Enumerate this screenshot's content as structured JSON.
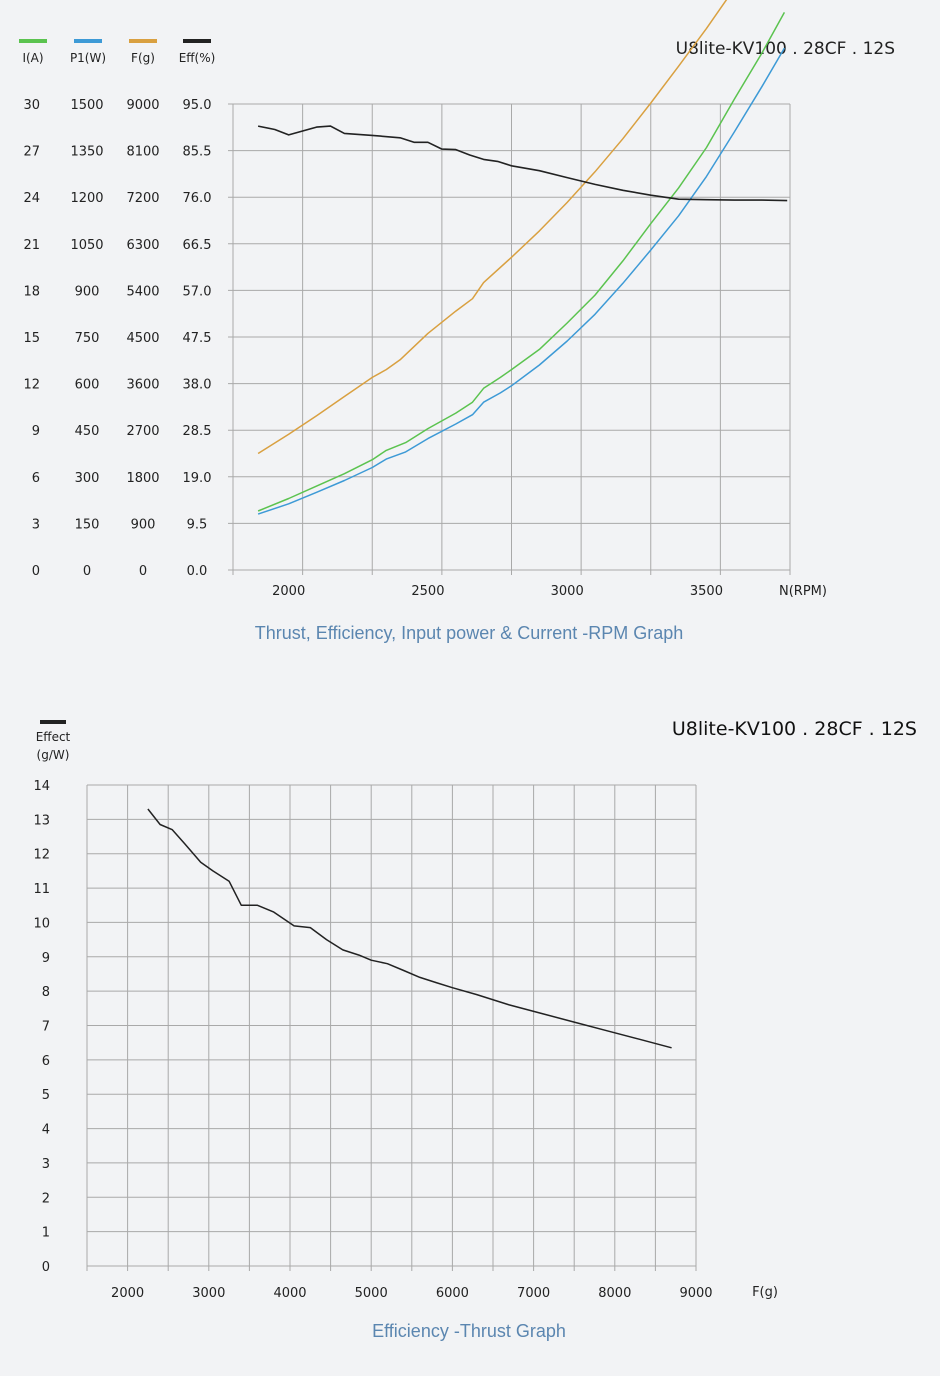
{
  "colors": {
    "current": "#5bc34f",
    "power": "#3d9ad6",
    "thrust": "#d9a040",
    "efficiency": "#222222",
    "grid": "#a9a9a9",
    "caption": "#5b86b0"
  },
  "chart_data": [
    {
      "type": "line",
      "title": "Thrust, Efficiency, Input power & Current -RPM Graph",
      "model": "U8lite-KV100 . 28CF . 12S",
      "xlabel": "N(RPM)",
      "xlim": [
        1800,
        3800
      ],
      "x_ticks": [
        "2000",
        "2500",
        "3000",
        "3500"
      ],
      "legend": [
        {
          "key": "current",
          "label": "I(A)"
        },
        {
          "key": "power",
          "label": "P1(W)"
        },
        {
          "key": "thrust",
          "label": "F(g)"
        },
        {
          "key": "efficiency",
          "label": "Eff(%)"
        }
      ],
      "y_axes": [
        {
          "name": "I(A)",
          "ticks": [
            "0",
            "3",
            "6",
            "9",
            "12",
            "15",
            "18",
            "21",
            "24",
            "27",
            "30"
          ]
        },
        {
          "name": "P1(W)",
          "ticks": [
            "0",
            "150",
            "300",
            "450",
            "600",
            "750",
            "900",
            "1050",
            "1200",
            "1350",
            "1500"
          ]
        },
        {
          "name": "F(g)",
          "ticks": [
            "0",
            "900",
            "1800",
            "2700",
            "3600",
            "4500",
            "5400",
            "6300",
            "7200",
            "8100",
            "9000"
          ]
        },
        {
          "name": "Eff(%)",
          "ticks": [
            "0.0",
            "9.5",
            "19.0",
            "28.5",
            "38.0",
            "47.5",
            "57.0",
            "66.5",
            "76.0",
            "85.5",
            "95.0"
          ]
        }
      ],
      "grid": true,
      "series": [
        {
          "name": "I(A)",
          "color_key": "current",
          "axis": "I(A)",
          "x": [
            1890,
            2000,
            2100,
            2200,
            2300,
            2350,
            2420,
            2500,
            2600,
            2660,
            2700,
            2760,
            2800,
            2900,
            3000,
            3100,
            3200,
            3300,
            3400,
            3500,
            3600,
            3700,
            3780
          ],
          "y": [
            3.8,
            4.6,
            5.4,
            6.2,
            7.1,
            7.7,
            8.2,
            9.1,
            10.1,
            10.8,
            11.7,
            12.4,
            12.9,
            14.2,
            15.9,
            17.7,
            19.9,
            22.3,
            24.6,
            27.2,
            30.3,
            33.3,
            35.9
          ]
        },
        {
          "name": "P1(W)",
          "color_key": "power",
          "axis": "P1(W)",
          "x": [
            1890,
            2000,
            2100,
            2200,
            2300,
            2350,
            2420,
            2500,
            2600,
            2660,
            2700,
            2760,
            2800,
            2900,
            3000,
            3100,
            3200,
            3300,
            3400,
            3500,
            3600,
            3700,
            3780
          ],
          "y": [
            180,
            213,
            250,
            288,
            330,
            357,
            380,
            423,
            470,
            500,
            540,
            570,
            593,
            660,
            737,
            823,
            923,
            1030,
            1140,
            1267,
            1410,
            1557,
            1680
          ]
        },
        {
          "name": "F(g)",
          "color_key": "thrust",
          "axis": "F(g)",
          "x": [
            1890,
            2000,
            2100,
            2200,
            2300,
            2350,
            2400,
            2500,
            2600,
            2660,
            2700,
            2800,
            2900,
            3000,
            3100,
            3200,
            3300,
            3400,
            3500,
            3600,
            3700,
            3790
          ],
          "y": [
            2250,
            2620,
            2980,
            3350,
            3720,
            3870,
            4060,
            4570,
            5000,
            5240,
            5550,
            6040,
            6550,
            7100,
            7690,
            8330,
            9020,
            9730,
            10460,
            11230,
            12040,
            12780
          ]
        },
        {
          "name": "Eff(%)",
          "color_key": "efficiency",
          "axis": "Eff(%)",
          "x": [
            1890,
            1950,
            2000,
            2100,
            2150,
            2200,
            2300,
            2400,
            2450,
            2500,
            2550,
            2600,
            2650,
            2700,
            2750,
            2800,
            2900,
            3000,
            3100,
            3200,
            3300,
            3400,
            3500,
            3600,
            3700,
            3790
          ],
          "y": [
            90.5,
            89.8,
            88.7,
            90.3,
            90.5,
            89.0,
            88.6,
            88.1,
            87.2,
            87.2,
            85.8,
            85.7,
            84.6,
            83.7,
            83.3,
            82.4,
            81.4,
            80.0,
            78.6,
            77.4,
            76.4,
            75.6,
            75.5,
            75.4,
            75.4,
            75.3
          ]
        }
      ]
    },
    {
      "type": "line",
      "title": "Efficiency -Thrust Graph",
      "model": "U8lite-KV100 . 28CF . 12S",
      "xlabel": "F(g)",
      "ylabel": "Effect (g/W)",
      "legend": [
        {
          "key": "efficiency",
          "label": "Effect (g/W)"
        }
      ],
      "xlim": [
        1500,
        9000
      ],
      "ylim": [
        0,
        14
      ],
      "x_ticks": [
        "2000",
        "3000",
        "4000",
        "5000",
        "6000",
        "7000",
        "8000",
        "9000"
      ],
      "y_ticks": [
        "0",
        "1",
        "2",
        "3",
        "4",
        "5",
        "6",
        "7",
        "8",
        "9",
        "10",
        "11",
        "12",
        "13",
        "14"
      ],
      "grid": true,
      "series": [
        {
          "name": "Effect (g/W)",
          "color_key": "efficiency",
          "x": [
            2250,
            2400,
            2550,
            2700,
            2900,
            3050,
            3250,
            3400,
            3600,
            3800,
            4050,
            4250,
            4450,
            4650,
            4850,
            5000,
            5200,
            5400,
            5600,
            5800,
            6000,
            6300,
            6700,
            7100,
            7500,
            7900,
            8300,
            8700
          ],
          "y": [
            13.3,
            12.85,
            12.7,
            12.3,
            11.75,
            11.5,
            11.2,
            10.5,
            10.5,
            10.3,
            9.9,
            9.85,
            9.5,
            9.2,
            9.05,
            8.9,
            8.8,
            8.6,
            8.4,
            8.25,
            8.1,
            7.9,
            7.6,
            7.35,
            7.1,
            6.85,
            6.6,
            6.35
          ]
        }
      ]
    }
  ]
}
